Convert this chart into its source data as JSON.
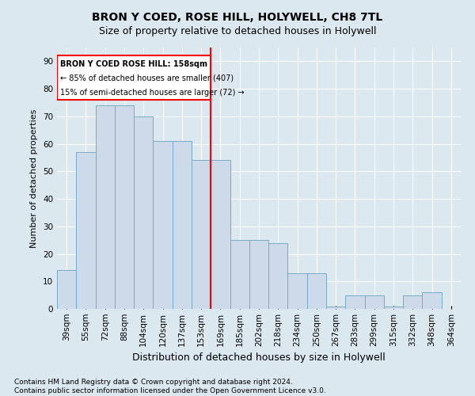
{
  "title": "BRON Y COED, ROSE HILL, HOLYWELL, CH8 7TL",
  "subtitle": "Size of property relative to detached houses in Holywell",
  "xlabel": "Distribution of detached houses by size in Holywell",
  "ylabel": "Number of detached properties",
  "categories": [
    "39sqm",
    "55sqm",
    "72sqm",
    "88sqm",
    "104sqm",
    "120sqm",
    "137sqm",
    "153sqm",
    "169sqm",
    "185sqm",
    "202sqm",
    "218sqm",
    "234sqm",
    "250sqm",
    "267sqm",
    "283sqm",
    "299sqm",
    "315sqm",
    "332sqm",
    "348sqm",
    "364sqm"
  ],
  "values": [
    14,
    57,
    74,
    74,
    70,
    61,
    61,
    54,
    54,
    25,
    25,
    24,
    13,
    13,
    1,
    5,
    5,
    1,
    5,
    6,
    0
  ],
  "bar_color": "#ccdaea",
  "bar_edge_color": "#7aaac8",
  "vline_x_index": 7,
  "vline_color": "red",
  "annotation_title": "BRON Y COED ROSE HILL: 158sqm",
  "annotation_line1": "← 85% of detached houses are smaller (407)",
  "annotation_line2": "15% of semi-detached houses are larger (72) →",
  "annotation_box_color": "white",
  "annotation_box_edge_color": "red",
  "ylim": [
    0,
    95
  ],
  "yticks": [
    0,
    10,
    20,
    30,
    40,
    50,
    60,
    70,
    80,
    90
  ],
  "footer_line1": "Contains HM Land Registry data © Crown copyright and database right 2024.",
  "footer_line2": "Contains public sector information licensed under the Open Government Licence v3.0.",
  "background_color": "#dce8f0",
  "plot_bg_color": "#dce8f0",
  "title_fontsize": 10,
  "subtitle_fontsize": 9,
  "ylabel_fontsize": 8,
  "xlabel_fontsize": 9,
  "tick_fontsize": 7.5,
  "footer_fontsize": 6.5
}
